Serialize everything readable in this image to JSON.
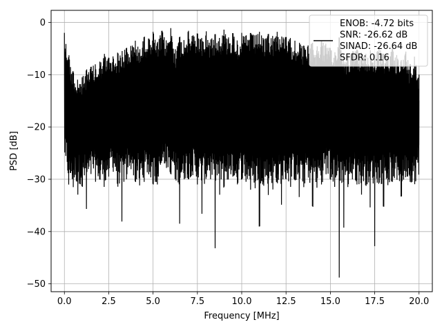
{
  "chart_data": {
    "type": "line",
    "title": "",
    "xlabel": "Frequency [MHz]",
    "ylabel": "PSD [dB]",
    "xlim": [
      -0.75,
      20.75
    ],
    "ylim": [
      -51.5,
      2.3
    ],
    "xticks": [
      0.0,
      2.5,
      5.0,
      7.5,
      10.0,
      12.5,
      15.0,
      17.5,
      20.0
    ],
    "xtick_labels": [
      "0.0",
      "2.5",
      "5.0",
      "7.5",
      "10.0",
      "12.5",
      "15.0",
      "17.5",
      "20.0"
    ],
    "yticks": [
      0,
      -10,
      -20,
      -30,
      -40,
      -50
    ],
    "ytick_labels": [
      "0",
      "−10",
      "−20",
      "−30",
      "−40",
      "−50"
    ],
    "grid": true,
    "legend_position": "upper right",
    "legend_entries": [
      "ENOB: -4.72 bits",
      "SNR: -26.62 dB",
      "SINAD: -26.64 dB",
      "SFDR: 0.16"
    ],
    "series": [
      {
        "color": "#000000",
        "x": [
          0.0,
          0.25,
          0.5,
          0.75,
          1.0,
          1.25,
          1.5,
          1.75,
          2.0,
          2.25,
          2.5,
          2.75,
          3.0,
          3.25,
          3.5,
          3.75,
          4.0,
          4.25,
          4.5,
          4.75,
          5.0,
          5.25,
          5.5,
          5.75,
          6.0,
          6.25,
          6.5,
          6.75,
          7.0,
          7.25,
          7.5,
          7.75,
          8.0,
          8.25,
          8.5,
          8.75,
          9.0,
          9.25,
          9.5,
          9.75,
          10.0,
          10.25,
          10.5,
          10.75,
          11.0,
          11.25,
          11.5,
          11.75,
          12.0,
          12.25,
          12.5,
          12.75,
          13.0,
          13.25,
          13.5,
          13.75,
          14.0,
          14.25,
          14.5,
          14.75,
          15.0,
          15.25,
          15.5,
          15.75,
          16.0,
          16.25,
          16.5,
          16.75,
          17.0,
          17.25,
          17.5,
          17.75,
          18.0,
          18.25,
          18.5,
          18.75,
          19.0,
          19.25,
          19.5,
          19.75,
          20.0
        ],
        "upper": [
          -2.0,
          -6.2,
          -9.5,
          -11.0,
          -10.5,
          -9.0,
          -8.5,
          -8.0,
          -7.5,
          -6.0,
          -6.8,
          -6.5,
          -5.8,
          -5.5,
          -4.9,
          -4.5,
          -3.5,
          -5.2,
          -2.7,
          -3.1,
          -1.8,
          -3.8,
          -1.5,
          -3.5,
          -1.1,
          -5.2,
          -2.7,
          -3.4,
          -1.6,
          -2.5,
          -2.1,
          -3.0,
          -1.7,
          -3.3,
          -2.2,
          -3.0,
          -1.4,
          -2.9,
          -2.0,
          -3.5,
          -2.0,
          -2.5,
          -2.0,
          -2.5,
          -1.8,
          -3.2,
          -2.2,
          -2.6,
          -1.8,
          -2.7,
          -2.8,
          -3.0,
          -3.5,
          -3.9,
          -4.5,
          -4.4,
          -3.9,
          -4.6,
          -3.5,
          -4.1,
          -4.9,
          -5.8,
          -2.7,
          -6.2,
          -6.0,
          -5.5,
          -5.2,
          -5.8,
          -6.0,
          -5.3,
          -6.2,
          -4.8,
          -6.0,
          -6.5,
          -4.5,
          -6.3,
          -7.2,
          -5.5,
          -8.1,
          -6.5,
          -10.0
        ],
        "lower": [
          -24.5,
          -31.2,
          -31.5,
          -33.0,
          -31.2,
          -35.8,
          -29.0,
          -30.5,
          -30.0,
          -31.5,
          -29.5,
          -28.5,
          -31.0,
          -38.3,
          -30.0,
          -28.0,
          -30.5,
          -31.2,
          -30.5,
          -29.0,
          -31.0,
          -31.0,
          -26.5,
          -27.8,
          -29.0,
          -30.0,
          -38.5,
          -30.0,
          -30.0,
          -29.2,
          -31.0,
          -36.8,
          -29.5,
          -30.0,
          -43.2,
          -33.0,
          -31.5,
          -30.0,
          -29.5,
          -31.0,
          -30.0,
          -30.5,
          -32.0,
          -31.5,
          -39.5,
          -31.0,
          -33.0,
          -32.0,
          -30.5,
          -35.0,
          -30.0,
          -31.5,
          -30.0,
          -33.5,
          -31.5,
          -29.5,
          -35.5,
          -31.5,
          -31.0,
          -29.0,
          -30.0,
          -31.5,
          -48.8,
          -39.5,
          -31.0,
          -30.0,
          -31.0,
          -33.0,
          -31.0,
          -35.5,
          -42.8,
          -30.5,
          -35.5,
          -31.0,
          -30.5,
          -30.0,
          -33.5,
          -29.5,
          -30.5,
          -31.0,
          -29.0
        ]
      }
    ]
  }
}
